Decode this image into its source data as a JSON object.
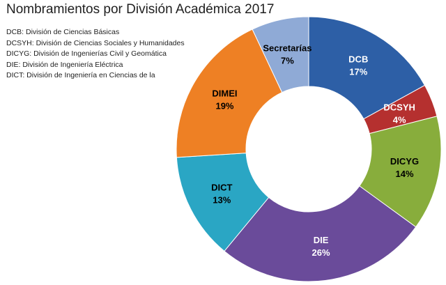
{
  "chart_data": {
    "type": "pie",
    "style": "donut",
    "title": "Nombramientos por División Académica 2017",
    "notes": [
      "DCB: División de Ciencias Básicas",
      "DCSYH: División de Ciencias Sociales y Humanidades",
      "DICYG: División de Ingenierías Civil y Geomática",
      "DIE: División de Ingeniería Eléctrica",
      "DICT: División de Ingeniería en Ciencias de la"
    ],
    "categories": [
      "DCB",
      "DCSYH",
      "DICYG",
      "DIE",
      "DICT",
      "DIMEI",
      "Secretarías"
    ],
    "values": [
      17,
      4,
      14,
      26,
      13,
      19,
      7
    ],
    "value_labels": [
      "17%",
      "4%",
      "14%",
      "26%",
      "13%",
      "19%",
      "7%"
    ],
    "colors": [
      "#2d5fa6",
      "#b5302f",
      "#88ad3c",
      "#6a4b9a",
      "#2aa6c4",
      "#ee8024",
      "#8faad6"
    ],
    "label_colors": [
      "#ffffff",
      "#ffffff",
      "#000000",
      "#ffffff",
      "#000000",
      "#000000",
      "#000000"
    ]
  }
}
